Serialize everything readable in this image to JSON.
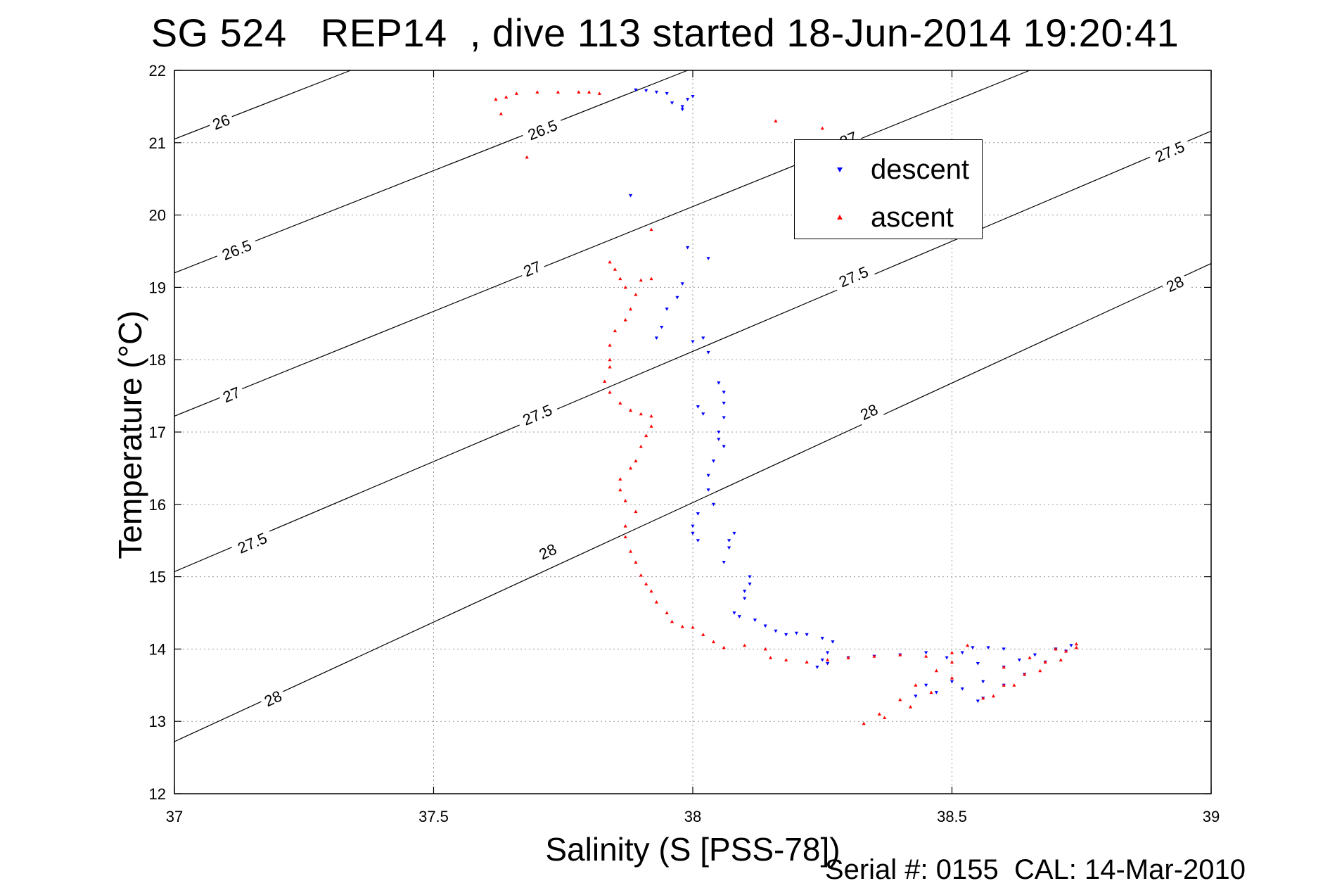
{
  "title": "SG 524   REP14  , dive 113 started 18-Jun-2014 19:20:41",
  "footer": "Serial #: 0155  CAL: 14-Mar-2010",
  "chart_data": {
    "type": "scatter",
    "title": "SG 524   REP14  , dive 113 started 18-Jun-2014 19:20:41",
    "xlabel": "Salinity (S [PSS-78])",
    "ylabel": "Temperature (°C)",
    "xlim": [
      37,
      39
    ],
    "ylim": [
      12,
      22
    ],
    "xticks": [
      "37",
      "37.5",
      "38",
      "38.5",
      "39"
    ],
    "yticks": [
      "12",
      "13",
      "14",
      "15",
      "16",
      "17",
      "18",
      "19",
      "20",
      "21",
      "22"
    ],
    "xtick_values": [
      37,
      37.5,
      38,
      38.5,
      39
    ],
    "ytick_values": [
      12,
      13,
      14,
      15,
      16,
      17,
      18,
      19,
      20,
      21,
      22
    ],
    "grid": true,
    "legend_position": "top-right",
    "density_contours": [
      {
        "label": "26",
        "start": [
          37.0,
          21.05
        ],
        "end": [
          37.34,
          22.0
        ],
        "labels_at": [
          [
            37.09,
            21.29
          ]
        ]
      },
      {
        "label": "26.5",
        "start": [
          37.0,
          19.2
        ],
        "end": [
          37.99,
          22.0
        ],
        "labels_at": [
          [
            37.12,
            19.52
          ],
          [
            37.71,
            21.18
          ]
        ]
      },
      {
        "label": "27",
        "start": [
          37.0,
          17.22
        ],
        "end": [
          38.65,
          22.0
        ],
        "labels_at": [
          [
            37.11,
            17.52
          ],
          [
            37.69,
            19.26
          ],
          [
            38.3,
            21.05
          ]
        ]
      },
      {
        "label": "27.5",
        "start": [
          37.0,
          15.07
        ],
        "end": [
          39.0,
          21.16
        ],
        "labels_at": [
          [
            37.15,
            15.47
          ],
          [
            37.7,
            17.24
          ],
          [
            38.31,
            19.15
          ],
          [
            38.92,
            20.88
          ]
        ]
      },
      {
        "label": "28",
        "start": [
          37.0,
          12.72
        ],
        "end": [
          39.0,
          19.33
        ],
        "labels_at": [
          [
            37.19,
            13.32
          ],
          [
            37.72,
            15.35
          ],
          [
            38.34,
            17.28
          ],
          [
            38.93,
            19.05
          ]
        ]
      }
    ],
    "series": [
      {
        "name": "descent",
        "color": "#0000ff",
        "marker": "triangle-down",
        "points": [
          [
            37.89,
            21.73
          ],
          [
            37.91,
            21.72
          ],
          [
            37.93,
            21.7
          ],
          [
            37.95,
            21.68
          ],
          [
            37.96,
            21.55
          ],
          [
            37.98,
            21.46
          ],
          [
            37.99,
            21.6
          ],
          [
            38.0,
            21.64
          ],
          [
            37.98,
            21.5
          ],
          [
            37.88,
            20.27
          ],
          [
            37.99,
            19.55
          ],
          [
            38.03,
            19.4
          ],
          [
            37.98,
            19.05
          ],
          [
            37.97,
            18.86
          ],
          [
            37.95,
            18.7
          ],
          [
            37.94,
            18.45
          ],
          [
            37.93,
            18.3
          ],
          [
            38.0,
            18.25
          ],
          [
            38.02,
            18.3
          ],
          [
            38.03,
            18.1
          ],
          [
            38.05,
            17.68
          ],
          [
            38.06,
            17.55
          ],
          [
            38.06,
            17.4
          ],
          [
            38.01,
            17.35
          ],
          [
            38.02,
            17.25
          ],
          [
            38.06,
            17.2
          ],
          [
            38.05,
            17.0
          ],
          [
            38.05,
            16.9
          ],
          [
            38.06,
            16.8
          ],
          [
            38.04,
            16.6
          ],
          [
            38.03,
            16.4
          ],
          [
            38.03,
            16.2
          ],
          [
            38.04,
            16.0
          ],
          [
            38.01,
            15.87
          ],
          [
            38.0,
            15.7
          ],
          [
            38.0,
            15.6
          ],
          [
            38.01,
            15.5
          ],
          [
            38.08,
            15.6
          ],
          [
            38.07,
            15.5
          ],
          [
            38.07,
            15.4
          ],
          [
            38.06,
            15.2
          ],
          [
            38.11,
            15.0
          ],
          [
            38.11,
            14.9
          ],
          [
            38.1,
            14.8
          ],
          [
            38.1,
            14.7
          ],
          [
            38.08,
            14.5
          ],
          [
            38.09,
            14.45
          ],
          [
            38.12,
            14.4
          ],
          [
            38.14,
            14.32
          ],
          [
            38.16,
            14.25
          ],
          [
            38.18,
            14.2
          ],
          [
            38.2,
            14.22
          ],
          [
            38.22,
            14.2
          ],
          [
            38.25,
            14.15
          ],
          [
            38.27,
            14.1
          ],
          [
            38.26,
            13.95
          ],
          [
            38.25,
            13.85
          ],
          [
            38.24,
            13.75
          ],
          [
            38.26,
            13.8
          ],
          [
            38.3,
            13.88
          ],
          [
            38.35,
            13.9
          ],
          [
            38.4,
            13.92
          ],
          [
            38.45,
            13.95
          ],
          [
            38.49,
            13.88
          ],
          [
            38.52,
            13.95
          ],
          [
            38.54,
            14.02
          ],
          [
            38.57,
            14.02
          ],
          [
            38.6,
            14.0
          ],
          [
            38.55,
            13.8
          ],
          [
            38.5,
            13.55
          ],
          [
            38.45,
            13.5
          ],
          [
            38.43,
            13.35
          ],
          [
            38.47,
            13.4
          ],
          [
            38.52,
            13.45
          ],
          [
            38.56,
            13.55
          ],
          [
            38.6,
            13.75
          ],
          [
            38.63,
            13.85
          ],
          [
            38.66,
            13.92
          ],
          [
            38.7,
            14.0
          ],
          [
            38.73,
            14.05
          ],
          [
            38.72,
            13.97
          ],
          [
            38.68,
            13.82
          ],
          [
            38.64,
            13.65
          ],
          [
            38.6,
            13.5
          ],
          [
            38.56,
            13.32
          ],
          [
            38.55,
            13.28
          ]
        ]
      },
      {
        "name": "ascent",
        "color": "#ff0000",
        "marker": "triangle-up",
        "points": [
          [
            37.62,
            21.6
          ],
          [
            37.64,
            21.63
          ],
          [
            37.66,
            21.68
          ],
          [
            37.7,
            21.7
          ],
          [
            37.74,
            21.7
          ],
          [
            37.78,
            21.7
          ],
          [
            37.8,
            21.7
          ],
          [
            37.82,
            21.68
          ],
          [
            37.63,
            21.4
          ],
          [
            37.68,
            20.8
          ],
          [
            38.16,
            21.3
          ],
          [
            38.25,
            21.2
          ],
          [
            37.92,
            19.8
          ],
          [
            37.84,
            19.35
          ],
          [
            37.85,
            19.25
          ],
          [
            37.86,
            19.12
          ],
          [
            37.87,
            19.0
          ],
          [
            37.9,
            19.1
          ],
          [
            37.92,
            19.12
          ],
          [
            37.89,
            18.9
          ],
          [
            37.88,
            18.7
          ],
          [
            37.87,
            18.55
          ],
          [
            37.85,
            18.4
          ],
          [
            37.84,
            18.2
          ],
          [
            37.84,
            18.0
          ],
          [
            37.84,
            17.9
          ],
          [
            37.83,
            17.7
          ],
          [
            37.84,
            17.55
          ],
          [
            37.86,
            17.4
          ],
          [
            37.88,
            17.3
          ],
          [
            37.9,
            17.25
          ],
          [
            37.92,
            17.22
          ],
          [
            37.92,
            17.08
          ],
          [
            37.91,
            16.95
          ],
          [
            37.9,
            16.8
          ],
          [
            37.89,
            16.6
          ],
          [
            37.88,
            16.5
          ],
          [
            37.86,
            16.35
          ],
          [
            37.86,
            16.2
          ],
          [
            37.87,
            16.05
          ],
          [
            37.89,
            15.9
          ],
          [
            37.87,
            15.7
          ],
          [
            37.87,
            15.55
          ],
          [
            37.88,
            15.35
          ],
          [
            37.89,
            15.2
          ],
          [
            37.9,
            15.02
          ],
          [
            37.91,
            14.9
          ],
          [
            37.92,
            14.8
          ],
          [
            37.93,
            14.65
          ],
          [
            37.95,
            14.5
          ],
          [
            37.96,
            14.38
          ],
          [
            37.98,
            14.31
          ],
          [
            38.0,
            14.3
          ],
          [
            38.02,
            14.2
          ],
          [
            38.04,
            14.1
          ],
          [
            38.06,
            14.02
          ],
          [
            38.1,
            14.05
          ],
          [
            38.14,
            14.0
          ],
          [
            38.15,
            13.88
          ],
          [
            38.18,
            13.85
          ],
          [
            38.22,
            13.82
          ],
          [
            38.26,
            13.85
          ],
          [
            38.3,
            13.88
          ],
          [
            38.35,
            13.9
          ],
          [
            38.4,
            13.92
          ],
          [
            38.45,
            13.9
          ],
          [
            38.5,
            13.95
          ],
          [
            38.53,
            14.05
          ],
          [
            38.5,
            13.82
          ],
          [
            38.47,
            13.7
          ],
          [
            38.43,
            13.5
          ],
          [
            38.4,
            13.3
          ],
          [
            38.36,
            13.1
          ],
          [
            38.33,
            12.97
          ],
          [
            38.37,
            13.05
          ],
          [
            38.42,
            13.2
          ],
          [
            38.46,
            13.4
          ],
          [
            38.5,
            13.6
          ],
          [
            38.6,
            13.75
          ],
          [
            38.65,
            13.88
          ],
          [
            38.7,
            14.0
          ],
          [
            38.74,
            14.07
          ],
          [
            38.72,
            13.97
          ],
          [
            38.68,
            13.82
          ],
          [
            38.64,
            13.65
          ],
          [
            38.6,
            13.5
          ],
          [
            38.56,
            13.32
          ],
          [
            38.58,
            13.35
          ],
          [
            38.62,
            13.5
          ],
          [
            38.67,
            13.7
          ],
          [
            38.71,
            13.85
          ],
          [
            38.74,
            14.02
          ]
        ]
      }
    ]
  }
}
